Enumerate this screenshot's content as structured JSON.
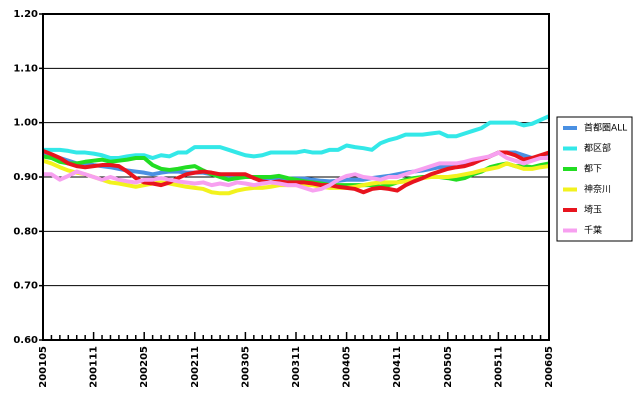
{
  "chart_data": {
    "type": "line",
    "categories": [
      "200105",
      null,
      null,
      null,
      null,
      null,
      "200111",
      null,
      null,
      null,
      null,
      null,
      "200205",
      null,
      null,
      null,
      null,
      null,
      "200211",
      null,
      null,
      null,
      null,
      null,
      "200305",
      null,
      null,
      null,
      null,
      null,
      "200311",
      null,
      null,
      null,
      null,
      null,
      "200405",
      null,
      null,
      null,
      null,
      null,
      "200411",
      null,
      null,
      null,
      null,
      null,
      "200505",
      null,
      null,
      null,
      null,
      null,
      "200511",
      null,
      null,
      null,
      null,
      null,
      "200605"
    ],
    "ylim": [
      0.6,
      1.2
    ],
    "yticks": [
      {
        "value": 0.6,
        "label": "0.60"
      },
      {
        "value": 0.7,
        "label": "0.70"
      },
      {
        "value": 0.8,
        "label": "0.80"
      },
      {
        "value": 0.9,
        "label": "0.90"
      },
      {
        "value": 1.0,
        "label": "1.00"
      },
      {
        "value": 1.1,
        "label": "1.10"
      },
      {
        "value": 1.2,
        "label": "1.20"
      }
    ],
    "grid": true,
    "legend": "right",
    "series": [
      {
        "name": "首都圏ALL",
        "color": "#4a90e2",
        "values": [
          0.945,
          0.94,
          0.935,
          0.93,
          0.925,
          0.925,
          0.922,
          0.92,
          0.918,
          0.915,
          0.912,
          0.91,
          0.908,
          0.905,
          0.908,
          0.91,
          0.91,
          0.908,
          0.908,
          0.908,
          0.905,
          0.905,
          0.902,
          0.9,
          0.9,
          0.9,
          0.898,
          0.898,
          0.898,
          0.897,
          0.897,
          0.897,
          0.895,
          0.893,
          0.892,
          0.893,
          0.895,
          0.895,
          0.895,
          0.898,
          0.9,
          0.902,
          0.905,
          0.908,
          0.91,
          0.912,
          0.915,
          0.918,
          0.92,
          0.922,
          0.925,
          0.928,
          0.932,
          0.938,
          0.945,
          0.945,
          0.945,
          0.94,
          0.935,
          0.938,
          0.942
        ]
      },
      {
        "name": "都区部",
        "color": "#33e8e8",
        "values": [
          0.95,
          0.95,
          0.95,
          0.948,
          0.945,
          0.945,
          0.943,
          0.94,
          0.935,
          0.935,
          0.938,
          0.94,
          0.94,
          0.935,
          0.94,
          0.938,
          0.945,
          0.945,
          0.955,
          0.955,
          0.955,
          0.955,
          0.95,
          0.945,
          0.94,
          0.938,
          0.94,
          0.945,
          0.945,
          0.945,
          0.945,
          0.948,
          0.945,
          0.945,
          0.95,
          0.95,
          0.958,
          0.955,
          0.953,
          0.95,
          0.962,
          0.968,
          0.972,
          0.978,
          0.978,
          0.978,
          0.98,
          0.982,
          0.975,
          0.975,
          0.98,
          0.985,
          0.99,
          1.0,
          1.0,
          1.0,
          1.0,
          0.995,
          0.998,
          1.005,
          1.012
        ]
      },
      {
        "name": "都下",
        "color": "#22dd22",
        "values": [
          0.938,
          0.935,
          0.928,
          0.925,
          0.925,
          0.928,
          0.93,
          0.932,
          0.928,
          0.93,
          0.932,
          0.935,
          0.935,
          0.922,
          0.915,
          0.913,
          0.915,
          0.918,
          0.92,
          0.912,
          0.905,
          0.9,
          0.895,
          0.898,
          0.9,
          0.9,
          0.9,
          0.9,
          0.902,
          0.898,
          0.895,
          0.892,
          0.89,
          0.888,
          0.885,
          0.885,
          0.885,
          0.885,
          0.885,
          0.885,
          0.882,
          0.885,
          0.89,
          0.895,
          0.898,
          0.9,
          0.9,
          0.9,
          0.898,
          0.895,
          0.898,
          0.905,
          0.91,
          0.918,
          0.922,
          0.925,
          0.92,
          0.92,
          0.918,
          0.922,
          0.925
        ]
      },
      {
        "name": "神奈川",
        "color": "#f2f21e",
        "values": [
          0.93,
          0.925,
          0.918,
          0.912,
          0.908,
          0.905,
          0.9,
          0.895,
          0.89,
          0.888,
          0.885,
          0.882,
          0.885,
          0.888,
          0.89,
          0.888,
          0.885,
          0.882,
          0.88,
          0.878,
          0.872,
          0.87,
          0.87,
          0.875,
          0.878,
          0.88,
          0.88,
          0.882,
          0.885,
          0.885,
          0.885,
          0.885,
          0.885,
          0.882,
          0.88,
          0.88,
          0.88,
          0.882,
          0.885,
          0.888,
          0.89,
          0.89,
          0.89,
          0.892,
          0.895,
          0.898,
          0.9,
          0.9,
          0.9,
          0.902,
          0.905,
          0.908,
          0.912,
          0.915,
          0.918,
          0.925,
          0.92,
          0.915,
          0.915,
          0.918,
          0.92
        ]
      },
      {
        "name": "埼玉",
        "color": "#e8141e",
        "values": [
          0.948,
          0.942,
          0.935,
          0.925,
          0.92,
          0.918,
          0.92,
          0.922,
          0.922,
          0.92,
          0.91,
          0.898,
          0.89,
          0.888,
          0.885,
          0.89,
          0.898,
          0.905,
          0.908,
          0.91,
          0.908,
          0.905,
          0.905,
          0.905,
          0.905,
          0.898,
          0.892,
          0.89,
          0.892,
          0.89,
          0.89,
          0.89,
          0.888,
          0.885,
          0.885,
          0.882,
          0.88,
          0.878,
          0.872,
          0.878,
          0.88,
          0.878,
          0.875,
          0.885,
          0.892,
          0.898,
          0.905,
          0.91,
          0.915,
          0.918,
          0.92,
          0.925,
          0.932,
          0.938,
          0.945,
          0.945,
          0.94,
          0.932,
          0.935,
          0.94,
          0.945
        ]
      },
      {
        "name": "千葉",
        "color": "#f7a0f0",
        "values": [
          0.905,
          0.905,
          0.895,
          0.902,
          0.91,
          0.905,
          0.9,
          0.895,
          0.9,
          0.895,
          0.892,
          0.89,
          0.895,
          0.895,
          0.898,
          0.895,
          0.892,
          0.89,
          0.888,
          0.89,
          0.885,
          0.888,
          0.885,
          0.89,
          0.888,
          0.885,
          0.888,
          0.89,
          0.888,
          0.885,
          0.885,
          0.88,
          0.875,
          0.878,
          0.885,
          0.895,
          0.902,
          0.905,
          0.9,
          0.898,
          0.895,
          0.9,
          0.9,
          0.905,
          0.91,
          0.915,
          0.92,
          0.925,
          0.925,
          0.925,
          0.928,
          0.932,
          0.935,
          0.938,
          0.945,
          0.935,
          0.93,
          0.925,
          0.93,
          0.935,
          0.935
        ]
      }
    ]
  }
}
